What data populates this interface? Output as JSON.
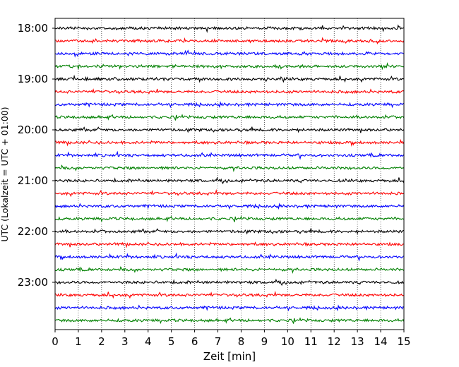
{
  "chart_data": {
    "type": "line",
    "title": "",
    "xlabel": "Zeit  [min]",
    "ylabel": "UTC (Lokalzeit = UTC + 01:00)",
    "xlim": [
      0,
      15
    ],
    "x_ticks": [
      "0",
      "1",
      "2",
      "3",
      "4",
      "5",
      "6",
      "7",
      "8",
      "9",
      "10",
      "11",
      "12",
      "13",
      "14",
      "15"
    ],
    "y_ticks": [
      "18:00",
      "19:00",
      "20:00",
      "21:00",
      "22:00",
      "23:00"
    ],
    "grid": "vertical dotted",
    "row_interval_minutes": 15,
    "row_colors": [
      "#000000",
      "#ff0000",
      "#0000ff",
      "#008000"
    ],
    "series": [
      {
        "start": "18:00",
        "color": "#000000"
      },
      {
        "start": "18:15",
        "color": "#ff0000"
      },
      {
        "start": "18:30",
        "color": "#0000ff"
      },
      {
        "start": "18:45",
        "color": "#008000"
      },
      {
        "start": "19:00",
        "color": "#000000"
      },
      {
        "start": "19:15",
        "color": "#ff0000"
      },
      {
        "start": "19:30",
        "color": "#0000ff"
      },
      {
        "start": "19:45",
        "color": "#008000"
      },
      {
        "start": "20:00",
        "color": "#000000"
      },
      {
        "start": "20:15",
        "color": "#ff0000"
      },
      {
        "start": "20:30",
        "color": "#0000ff"
      },
      {
        "start": "20:45",
        "color": "#008000"
      },
      {
        "start": "21:00",
        "color": "#000000"
      },
      {
        "start": "21:15",
        "color": "#ff0000"
      },
      {
        "start": "21:30",
        "color": "#0000ff"
      },
      {
        "start": "21:45",
        "color": "#008000"
      },
      {
        "start": "22:00",
        "color": "#000000"
      },
      {
        "start": "22:15",
        "color": "#ff0000"
      },
      {
        "start": "22:30",
        "color": "#0000ff"
      },
      {
        "start": "22:45",
        "color": "#008000"
      },
      {
        "start": "23:00",
        "color": "#000000"
      },
      {
        "start": "23:15",
        "color": "#ff0000"
      },
      {
        "start": "23:30",
        "color": "#0000ff"
      },
      {
        "start": "23:45",
        "color": "#008000"
      }
    ]
  }
}
